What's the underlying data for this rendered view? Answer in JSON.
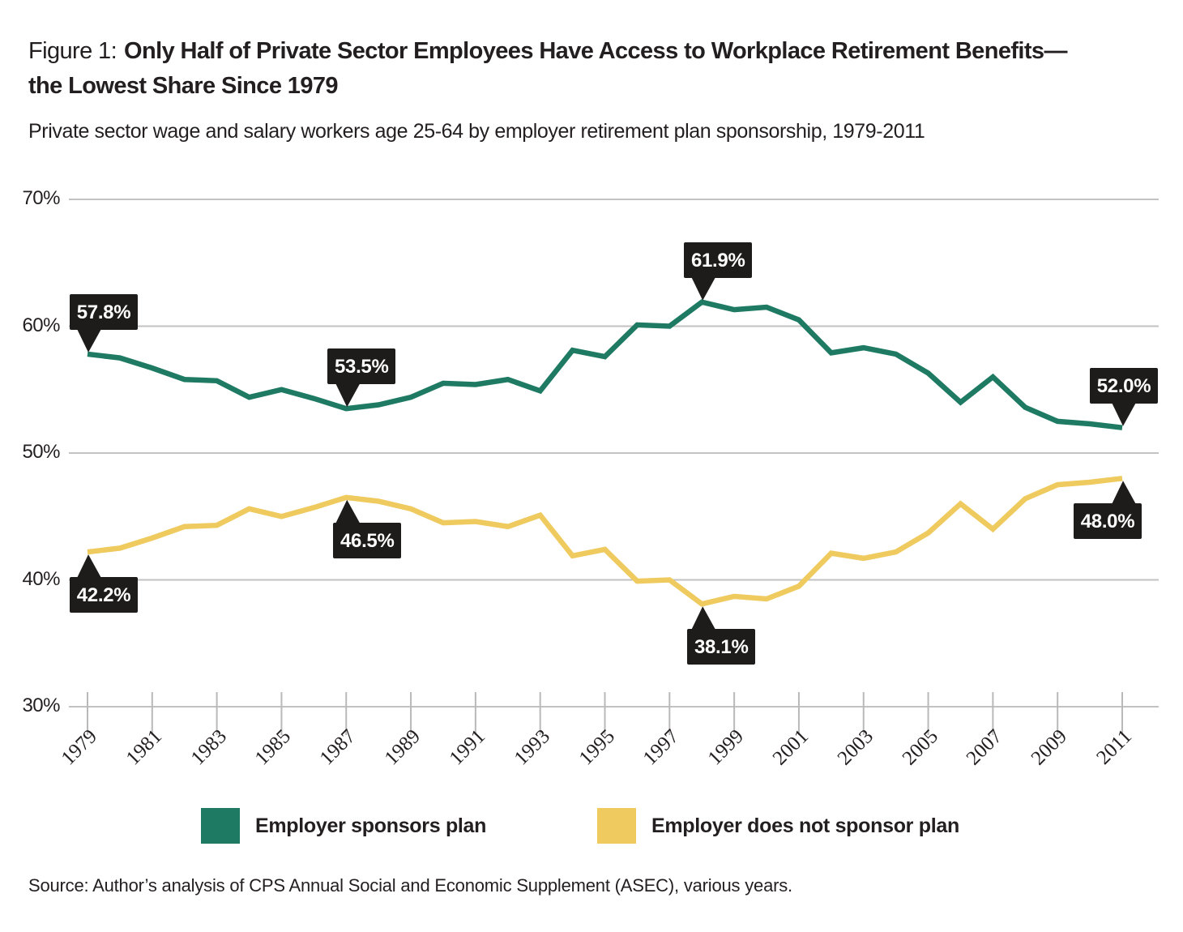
{
  "title": {
    "figure_label": "Figure 1:",
    "heading": "Only Half of Private Sector Employees Have Access to Workplace Retirement Benefits—the Lowest Share Since 1979"
  },
  "subtitle": "Private sector wage and salary workers age 25-64 by employer retirement plan sponsorship, 1979-2011",
  "source": "Source:  Author’s analysis of CPS Annual Social and Economic Supplement (ASEC), various years.",
  "colors": {
    "green": "#1e7a62",
    "yellow": "#efca5e",
    "callout_bg": "#1d1c1a",
    "callout_text": "#ffffff",
    "grid": "#c2c2c2",
    "tick": "#b9b9b9",
    "text": "#231f20"
  },
  "legend": {
    "items": [
      {
        "label": "Employer sponsors plan",
        "color_key": "green"
      },
      {
        "label": "Employer does not sponsor plan",
        "color_key": "yellow"
      }
    ]
  },
  "chart_data": {
    "type": "line",
    "x": [
      1979,
      1980,
      1981,
      1982,
      1983,
      1984,
      1985,
      1986,
      1987,
      1988,
      1989,
      1990,
      1991,
      1992,
      1993,
      1994,
      1995,
      1996,
      1997,
      1998,
      1999,
      2000,
      2001,
      2002,
      2003,
      2004,
      2005,
      2006,
      2007,
      2008,
      2009,
      2010,
      2011
    ],
    "series": [
      {
        "name": "Employer sponsors plan",
        "color": "#1e7a62",
        "values": [
          57.8,
          57.5,
          56.7,
          55.8,
          55.7,
          54.4,
          55.0,
          54.3,
          53.5,
          53.8,
          54.4,
          55.5,
          55.4,
          55.8,
          54.9,
          58.1,
          57.6,
          60.1,
          60.0,
          61.9,
          61.3,
          61.5,
          60.5,
          57.9,
          58.3,
          57.8,
          56.3,
          54.0,
          56.0,
          53.6,
          52.5,
          52.3,
          52.0
        ]
      },
      {
        "name": "Employer does not sponsor plan",
        "color": "#efca5e",
        "values": [
          42.2,
          42.5,
          43.3,
          44.2,
          44.3,
          45.6,
          45.0,
          45.7,
          46.5,
          46.2,
          45.6,
          44.5,
          44.6,
          44.2,
          45.1,
          41.9,
          42.4,
          39.9,
          40.0,
          38.1,
          38.7,
          38.5,
          39.5,
          42.1,
          41.7,
          42.2,
          43.7,
          46.0,
          44.0,
          46.4,
          47.5,
          47.7,
          48.0
        ]
      }
    ],
    "ylim": [
      30,
      70
    ],
    "ylabel": "",
    "xlabel": "",
    "grid": "horizontal",
    "legend_position": "bottom",
    "y_ticks": [
      {
        "value": 70,
        "label": "70%"
      },
      {
        "value": 60,
        "label": "60%"
      },
      {
        "value": 50,
        "label": "50%"
      },
      {
        "value": 40,
        "label": "40%"
      },
      {
        "value": 30,
        "label": "30%"
      }
    ],
    "x_tick_years": [
      1979,
      1981,
      1983,
      1985,
      1987,
      1989,
      1991,
      1993,
      1995,
      1997,
      1999,
      2001,
      2003,
      2005,
      2007,
      2009,
      2011
    ],
    "callouts": [
      {
        "series": 0,
        "year": 1979,
        "label": "57.8%",
        "placement": "above",
        "dx": -22
      },
      {
        "series": 0,
        "year": 1987,
        "label": "53.5%",
        "placement": "above",
        "dx": -23
      },
      {
        "series": 0,
        "year": 1998,
        "label": "61.9%",
        "placement": "above",
        "dx": -22
      },
      {
        "series": 0,
        "year": 2011,
        "label": "52.0%",
        "placement": "above",
        "dx": -40
      },
      {
        "series": 1,
        "year": 1979,
        "label": "42.2%",
        "placement": "below",
        "dx": -22
      },
      {
        "series": 1,
        "year": 1987,
        "label": "46.5%",
        "placement": "below",
        "dx": -16
      },
      {
        "series": 1,
        "year": 1998,
        "label": "38.1%",
        "placement": "below",
        "dx": -18
      },
      {
        "series": 1,
        "year": 2011,
        "label": "48.0%",
        "placement": "below",
        "dx": -60
      }
    ]
  }
}
